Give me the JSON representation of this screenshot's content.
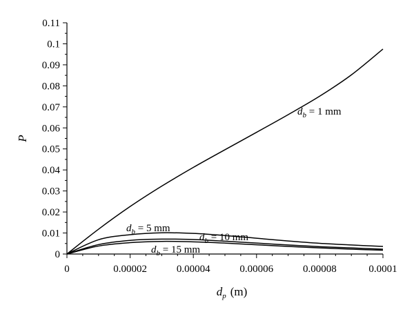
{
  "chart_data": {
    "type": "line",
    "xlabel_var": "d",
    "xlabel_sub": "p",
    "xlabel_unit": "(m)",
    "ylabel": "P",
    "xlim": [
      0,
      0.0001
    ],
    "ylim": [
      0,
      0.11
    ],
    "x_ticks": [
      "0",
      "0.00002",
      "0.00004",
      "0.00006",
      "0.00008",
      "0.0001"
    ],
    "y_ticks": [
      "0",
      "0.01",
      "0.02",
      "0.03",
      "0.04",
      "0.05",
      "0.06",
      "0.07",
      "0.08",
      "0.09",
      "0.1",
      "0.11"
    ],
    "series": [
      {
        "label_var": "d",
        "label_sub": "b",
        "label_val": " = 1 mm",
        "x": [
          0,
          1e-05,
          2e-05,
          3e-05,
          4e-05,
          5e-05,
          6e-05,
          7e-05,
          8e-05,
          9e-05,
          0.0001
        ],
        "y": [
          0,
          0.0118,
          0.0226,
          0.0323,
          0.0412,
          0.0496,
          0.0579,
          0.0663,
          0.0751,
          0.0852,
          0.0975
        ]
      },
      {
        "label_var": "d",
        "label_sub": "b",
        "label_val": " = 5 mm",
        "x": [
          0,
          1e-05,
          2e-05,
          3e-05,
          4e-05,
          5e-05,
          6e-05,
          7e-05,
          8e-05,
          9e-05,
          0.0001
        ],
        "y": [
          0,
          0.0068,
          0.0092,
          0.0101,
          0.0098,
          0.0088,
          0.0075,
          0.0062,
          0.0051,
          0.0043,
          0.0036
        ]
      },
      {
        "label_var": "d",
        "label_sub": "b",
        "label_val": " = 10 mm",
        "x": [
          0,
          1e-05,
          2e-05,
          3e-05,
          4e-05,
          5e-05,
          6e-05,
          7e-05,
          8e-05,
          9e-05,
          0.0001
        ],
        "y": [
          0,
          0.0045,
          0.0065,
          0.0071,
          0.0069,
          0.0061,
          0.0052,
          0.0043,
          0.0035,
          0.0029,
          0.0023
        ]
      },
      {
        "label_var": "d",
        "label_sub": "b",
        "label_val": " = 15 mm",
        "x": [
          0,
          1e-05,
          2e-05,
          3e-05,
          4e-05,
          5e-05,
          6e-05,
          7e-05,
          8e-05,
          9e-05,
          0.0001
        ],
        "y": [
          0,
          0.0038,
          0.0054,
          0.006,
          0.0058,
          0.0052,
          0.0044,
          0.0036,
          0.0029,
          0.0023,
          0.0018
        ]
      }
    ]
  }
}
